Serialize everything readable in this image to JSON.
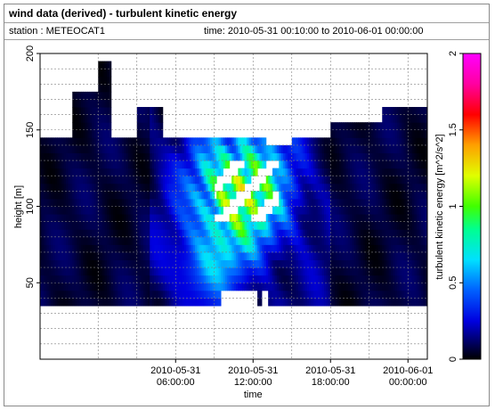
{
  "header": {
    "title": "wind data (derived) - turbulent kinetic energy",
    "station_text": "station : METEOCAT1",
    "time_text": "time: 2010-05-31 00:10:00 to 2010-06-01 00:00:00"
  },
  "chart_data": {
    "type": "heatmap",
    "title": "wind data (derived) - turbulent kinetic energy",
    "xlabel": "time",
    "ylabel": "height [m]",
    "colorbar_label": "turbulent kinetic energy [m^2/s^2]",
    "x_range_hours": [
      -4.5,
      25.5
    ],
    "ylim": [
      0,
      200
    ],
    "x_ticks": [
      {
        "hour": 6,
        "line1": "2010-05-31",
        "line2": "06:00:00"
      },
      {
        "hour": 12,
        "line1": "2010-05-31",
        "line2": "12:00:00"
      },
      {
        "hour": 18,
        "line1": "2010-05-31",
        "line2": "18:00:00"
      },
      {
        "hour": 24,
        "line1": "2010-06-01",
        "line2": "00:00:00"
      }
    ],
    "y_ticks": [
      50,
      100,
      150,
      200
    ],
    "colorbar_ticks": [
      "0",
      "0.5",
      "1",
      "1.5",
      "2"
    ],
    "colorbar_range": [
      0,
      2
    ],
    "colormap_stops": [
      {
        "v": 0.0,
        "c": "#000000"
      },
      {
        "v": 0.1,
        "c": "#00005a"
      },
      {
        "v": 0.25,
        "c": "#0000e0"
      },
      {
        "v": 0.45,
        "c": "#0060ff"
      },
      {
        "v": 0.65,
        "c": "#00e0ff"
      },
      {
        "v": 0.85,
        "c": "#00ff90"
      },
      {
        "v": 1.0,
        "c": "#40ff00"
      },
      {
        "v": 1.2,
        "c": "#e0ff00"
      },
      {
        "v": 1.4,
        "c": "#ffa000"
      },
      {
        "v": 1.6,
        "c": "#ff0000"
      },
      {
        "v": 1.8,
        "c": "#ff00a0"
      },
      {
        "v": 2.0,
        "c": "#ff00ff"
      }
    ],
    "grid": true,
    "legend": "colorbar-right"
  }
}
